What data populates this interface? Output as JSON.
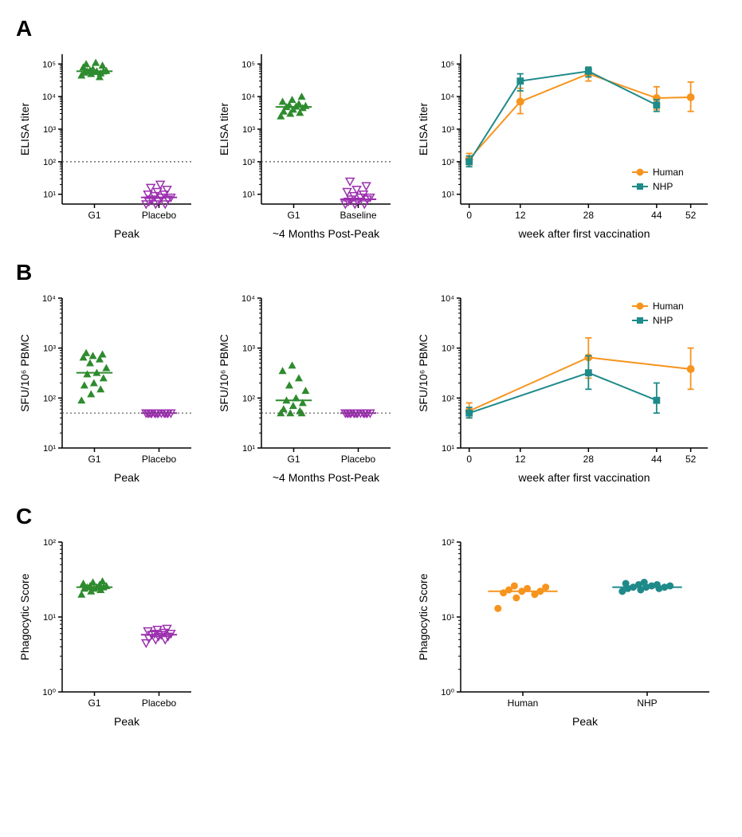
{
  "colors": {
    "green": "#2e8b2e",
    "purple": "#9b2fae",
    "orange": "#f7941d",
    "teal": "#1f8a8a",
    "axis": "#000000",
    "dotted": "#555555",
    "bg": "#ffffff"
  },
  "font": {
    "axis_label_size": 14,
    "tick_size": 11,
    "legend_size": 12,
    "xlabel_size": 14
  },
  "panelA": {
    "label": "A",
    "scatter1": {
      "ylabel": "ELISA titer",
      "xlabel": "Peak",
      "ylog": true,
      "ymin": 5,
      "ymax": 200000,
      "yticks": [
        10,
        100,
        1000,
        10000,
        100000
      ],
      "yticklabels": [
        "10¹",
        "10²",
        "10³",
        "10⁴",
        "10⁵"
      ],
      "hline": 100,
      "groups": [
        {
          "label": "G1",
          "color": "green",
          "marker": "triangle-up-filled",
          "median": 60000,
          "y": [
            45000,
            50000,
            52000,
            55000,
            58000,
            60000,
            60000,
            60000,
            62000,
            65000,
            40000,
            80000,
            70000,
            90000,
            100000,
            110000
          ]
        },
        {
          "label": "Placebo",
          "color": "purple",
          "marker": "triangle-down-open",
          "median": 8,
          "y": [
            5,
            5,
            5,
            6,
            6,
            7,
            7,
            8,
            8,
            9,
            10,
            10,
            12,
            14,
            16,
            20
          ]
        }
      ]
    },
    "scatter2": {
      "ylabel": "ELISA titer",
      "xlabel": "~4 Months Post-Peak",
      "ylog": true,
      "ymin": 5,
      "ymax": 200000,
      "yticks": [
        10,
        100,
        1000,
        10000,
        100000
      ],
      "yticklabels": [
        "10¹",
        "10²",
        "10³",
        "10⁴",
        "10⁵"
      ],
      "hline": 100,
      "groups": [
        {
          "label": "G1",
          "color": "green",
          "marker": "triangle-up-filled",
          "median": 4800,
          "y": [
            2500,
            3000,
            3200,
            3500,
            4000,
            4500,
            4800,
            5000,
            5200,
            5500,
            6000,
            7000,
            8000,
            10000
          ]
        },
        {
          "label": "Baseline",
          "color": "purple",
          "marker": "triangle-down-open",
          "median": 7,
          "y": [
            5,
            5,
            5,
            6,
            6,
            7,
            7,
            8,
            8,
            9,
            10,
            12,
            14,
            18,
            25
          ]
        }
      ]
    },
    "line": {
      "ylabel": "ELISA titer",
      "xlabel": "week after first vaccination",
      "ylog": true,
      "ymin": 5,
      "ymax": 200000,
      "yticks": [
        10,
        100,
        1000,
        10000,
        100000
      ],
      "yticklabels": [
        "10¹",
        "10²",
        "10³",
        "10⁴",
        "10⁵"
      ],
      "xmin": -2,
      "xmax": 56,
      "xticks": [
        0,
        12,
        28,
        44,
        52
      ],
      "series": [
        {
          "name": "Human",
          "color": "orange",
          "marker": "circle",
          "x": [
            0,
            12,
            28,
            44,
            52
          ],
          "y": [
            120,
            7000,
            50000,
            9000,
            9500
          ],
          "elo": [
            80,
            3000,
            30000,
            4000,
            3500
          ],
          "ehi": [
            180,
            18000,
            80000,
            20000,
            28000
          ]
        },
        {
          "name": "NHP",
          "color": "teal",
          "marker": "square",
          "x": [
            0,
            12,
            28,
            44
          ],
          "y": [
            100,
            30000,
            60000,
            5500
          ],
          "elo": [
            70,
            15000,
            40000,
            3500
          ],
          "ehi": [
            150,
            50000,
            80000,
            8000
          ]
        }
      ],
      "legend_pos": "bottom-right"
    }
  },
  "panelB": {
    "label": "B",
    "scatter1": {
      "ylabel": "SFU/10⁶ PBMC",
      "xlabel": "Peak",
      "ylog": true,
      "ymin": 10,
      "ymax": 10000,
      "yticks": [
        10,
        100,
        1000,
        10000
      ],
      "yticklabels": [
        "10¹",
        "10²",
        "10³",
        "10⁴"
      ],
      "hline": 50,
      "groups": [
        {
          "label": "G1",
          "color": "green",
          "marker": "triangle-up-filled",
          "median": 320,
          "y": [
            90,
            120,
            150,
            180,
            200,
            250,
            300,
            320,
            400,
            500,
            600,
            650,
            700,
            750,
            800
          ]
        },
        {
          "label": "Placebo",
          "color": "purple",
          "marker": "triangle-down-open",
          "median": 50,
          "y": [
            50,
            50,
            50,
            50,
            50,
            50,
            50,
            50,
            50,
            50,
            50,
            50,
            50,
            50,
            50
          ]
        }
      ]
    },
    "scatter2": {
      "ylabel": "SFU/10⁶ PBMC",
      "xlabel": "~4 Months Post-Peak",
      "ylog": true,
      "ymin": 10,
      "ymax": 10000,
      "yticks": [
        10,
        100,
        1000,
        10000
      ],
      "yticklabels": [
        "10¹",
        "10²",
        "10³",
        "10⁴"
      ],
      "hline": 50,
      "groups": [
        {
          "label": "G1",
          "color": "green",
          "marker": "triangle-up-filled",
          "median": 90,
          "y": [
            50,
            50,
            55,
            60,
            70,
            80,
            90,
            100,
            140,
            180,
            250,
            350,
            450,
            50
          ]
        },
        {
          "label": "Placebo",
          "color": "purple",
          "marker": "triangle-down-open",
          "median": 50,
          "y": [
            50,
            50,
            50,
            50,
            50,
            50,
            50,
            50,
            50,
            50,
            50,
            50,
            50,
            50,
            50
          ]
        }
      ]
    },
    "line": {
      "ylabel": "SFU/10⁶ PBMC",
      "xlabel": "week after first vaccination",
      "ylog": true,
      "ymin": 10,
      "ymax": 10000,
      "yticks": [
        10,
        100,
        1000,
        10000
      ],
      "yticklabels": [
        "10¹",
        "10²",
        "10³",
        "10⁴"
      ],
      "xmin": -2,
      "xmax": 56,
      "xticks": [
        0,
        12,
        28,
        44,
        52
      ],
      "series": [
        {
          "name": "Human",
          "color": "orange",
          "marker": "circle",
          "x": [
            0,
            28,
            52
          ],
          "y": [
            55,
            650,
            380
          ],
          "elo": [
            40,
            250,
            150
          ],
          "ehi": [
            80,
            1600,
            1000
          ]
        },
        {
          "name": "NHP",
          "color": "teal",
          "marker": "square",
          "x": [
            0,
            28,
            44
          ],
          "y": [
            50,
            320,
            90
          ],
          "elo": [
            40,
            150,
            50
          ],
          "ehi": [
            65,
            700,
            200
          ]
        }
      ],
      "legend_pos": "top-right"
    }
  },
  "panelC": {
    "label": "C",
    "scatter1": {
      "ylabel": "Phagocytic Score",
      "xlabel": "Peak",
      "ylog": true,
      "ymin": 1,
      "ymax": 100,
      "yticks": [
        1,
        10,
        100
      ],
      "yticklabels": [
        "10⁰",
        "10¹",
        "10²"
      ],
      "groups": [
        {
          "label": "G1",
          "color": "green",
          "marker": "triangle-up-filled",
          "median": 25,
          "y": [
            20,
            22,
            23,
            24,
            24,
            25,
            25,
            25,
            26,
            26,
            27,
            28,
            29,
            30
          ]
        },
        {
          "label": "Placebo",
          "color": "purple",
          "marker": "triangle-down-open",
          "median": 5.8,
          "y": [
            4.5,
            5,
            5,
            5.2,
            5.5,
            5.5,
            5.8,
            5.8,
            6,
            6,
            6.2,
            6.5,
            6.8,
            7
          ]
        }
      ]
    },
    "scatter2": {
      "ylabel": "Phagocytic Score",
      "xlabel": "Peak",
      "ylog": true,
      "ymin": 1,
      "ymax": 100,
      "yticks": [
        1,
        10,
        100
      ],
      "yticklabels": [
        "10⁰",
        "10¹",
        "10²"
      ],
      "groups": [
        {
          "label": "Human",
          "color": "orange",
          "marker": "circle-filled",
          "median": 22,
          "y": [
            13,
            18,
            20,
            21,
            22,
            22,
            23,
            24,
            25,
            26
          ]
        },
        {
          "label": "NHP",
          "color": "teal",
          "marker": "circle-filled",
          "median": 25,
          "y": [
            22,
            23,
            24,
            24,
            25,
            25,
            25,
            26,
            26,
            27,
            27,
            28,
            29
          ]
        }
      ]
    }
  }
}
